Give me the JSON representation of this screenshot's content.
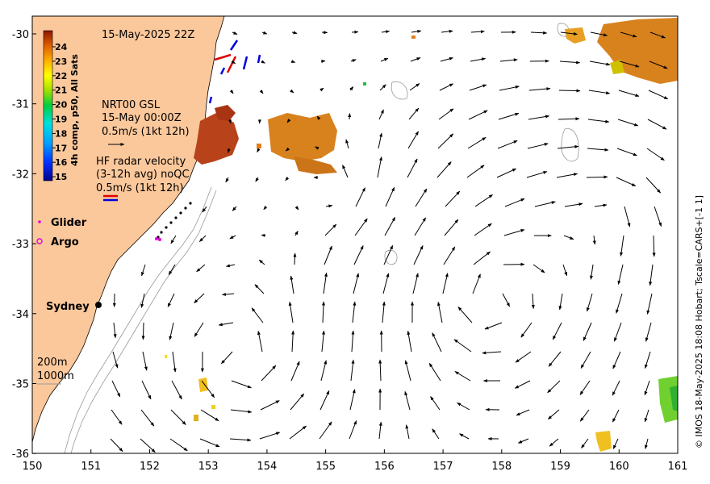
{
  "map": {
    "title": "15-May-2025 22Z",
    "lon_range": [
      150,
      161
    ],
    "lat_range": [
      -36,
      -29.75
    ],
    "x_ticks": [
      "150",
      "151",
      "152",
      "153",
      "154",
      "155",
      "156",
      "157",
      "158",
      "159",
      "160",
      "161"
    ],
    "y_ticks": [
      "-30",
      "-31",
      "-32",
      "-33",
      "-34",
      "-35",
      "-36"
    ],
    "colors": {
      "land": "#fbc89c",
      "sea": "#ffffff",
      "bathy": "#999999",
      "arrow": "#000000"
    }
  },
  "colorbar": {
    "label": "4h comp, p50, All Sats",
    "ticks": [
      "24",
      "23",
      "22",
      "21",
      "20",
      "19",
      "18",
      "17",
      "16",
      "15"
    ],
    "range": [
      15,
      24.5
    ]
  },
  "legend": {
    "gsl_line1": "NRT00 GSL",
    "gsl_line2": "15-May 00:00Z",
    "gsl_scale": "0.5m/s (1kt 12h)",
    "hf_line1": "HF radar velocity",
    "hf_line2": "(3-12h avg) noQC",
    "hf_scale": "0.5m/s (1kt 12h)",
    "glider": "Glider",
    "argo": "Argo",
    "glider_color": "#e000e0",
    "argo_color": "#e000e0",
    "depth_200": "200m",
    "depth_1000": "1000m"
  },
  "places": {
    "sydney": "Sydney"
  },
  "credit": "© IMOS 18-May-2025 18:08 Hobart; Tscale=CARS+[-1 1]"
}
